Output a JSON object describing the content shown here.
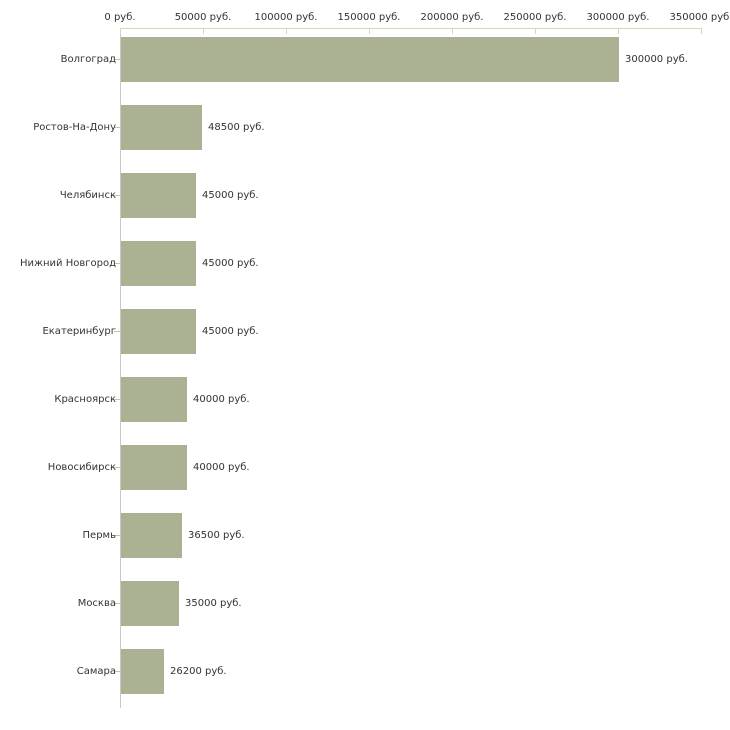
{
  "chart_data": {
    "type": "bar",
    "orientation": "horizontal",
    "title": "",
    "xlabel": "",
    "ylabel": "",
    "grid": false,
    "legend": false,
    "xlim": [
      0,
      350000
    ],
    "x_unit": "руб.",
    "x_tick_values": [
      0,
      50000,
      100000,
      150000,
      200000,
      250000,
      300000,
      350000
    ],
    "x_tick_labels": [
      "0 руб.",
      "50000 руб.",
      "100000 руб.",
      "150000 руб.",
      "200000 руб.",
      "250000 руб.",
      "300000 руб.",
      "350000 руб."
    ],
    "categories": [
      "Волгоград",
      "Ростов-На-Дону",
      "Челябинск",
      "Нижний Новгород",
      "Екатеринбург",
      "Красноярск",
      "Новосибирск",
      "Пермь",
      "Москва",
      "Самара"
    ],
    "values": [
      300000,
      48500,
      45000,
      45000,
      45000,
      40000,
      40000,
      36500,
      35000,
      26200
    ],
    "value_labels": [
      "300000 руб.",
      "48500 руб.",
      "45000 руб.",
      "45000 руб.",
      "45000 руб.",
      "40000 руб.",
      "40000 руб.",
      "36500 руб.",
      "35000 руб.",
      "26200 руб."
    ],
    "colors": {
      "bar": "#abb294",
      "x_axis_line": "#d9d6b8",
      "x_tick": "#d9d6b8",
      "y_axis_line": "#c8c8c8",
      "y_tick": "#c9bfba",
      "text": "#333333",
      "background": "#ffffff"
    }
  }
}
